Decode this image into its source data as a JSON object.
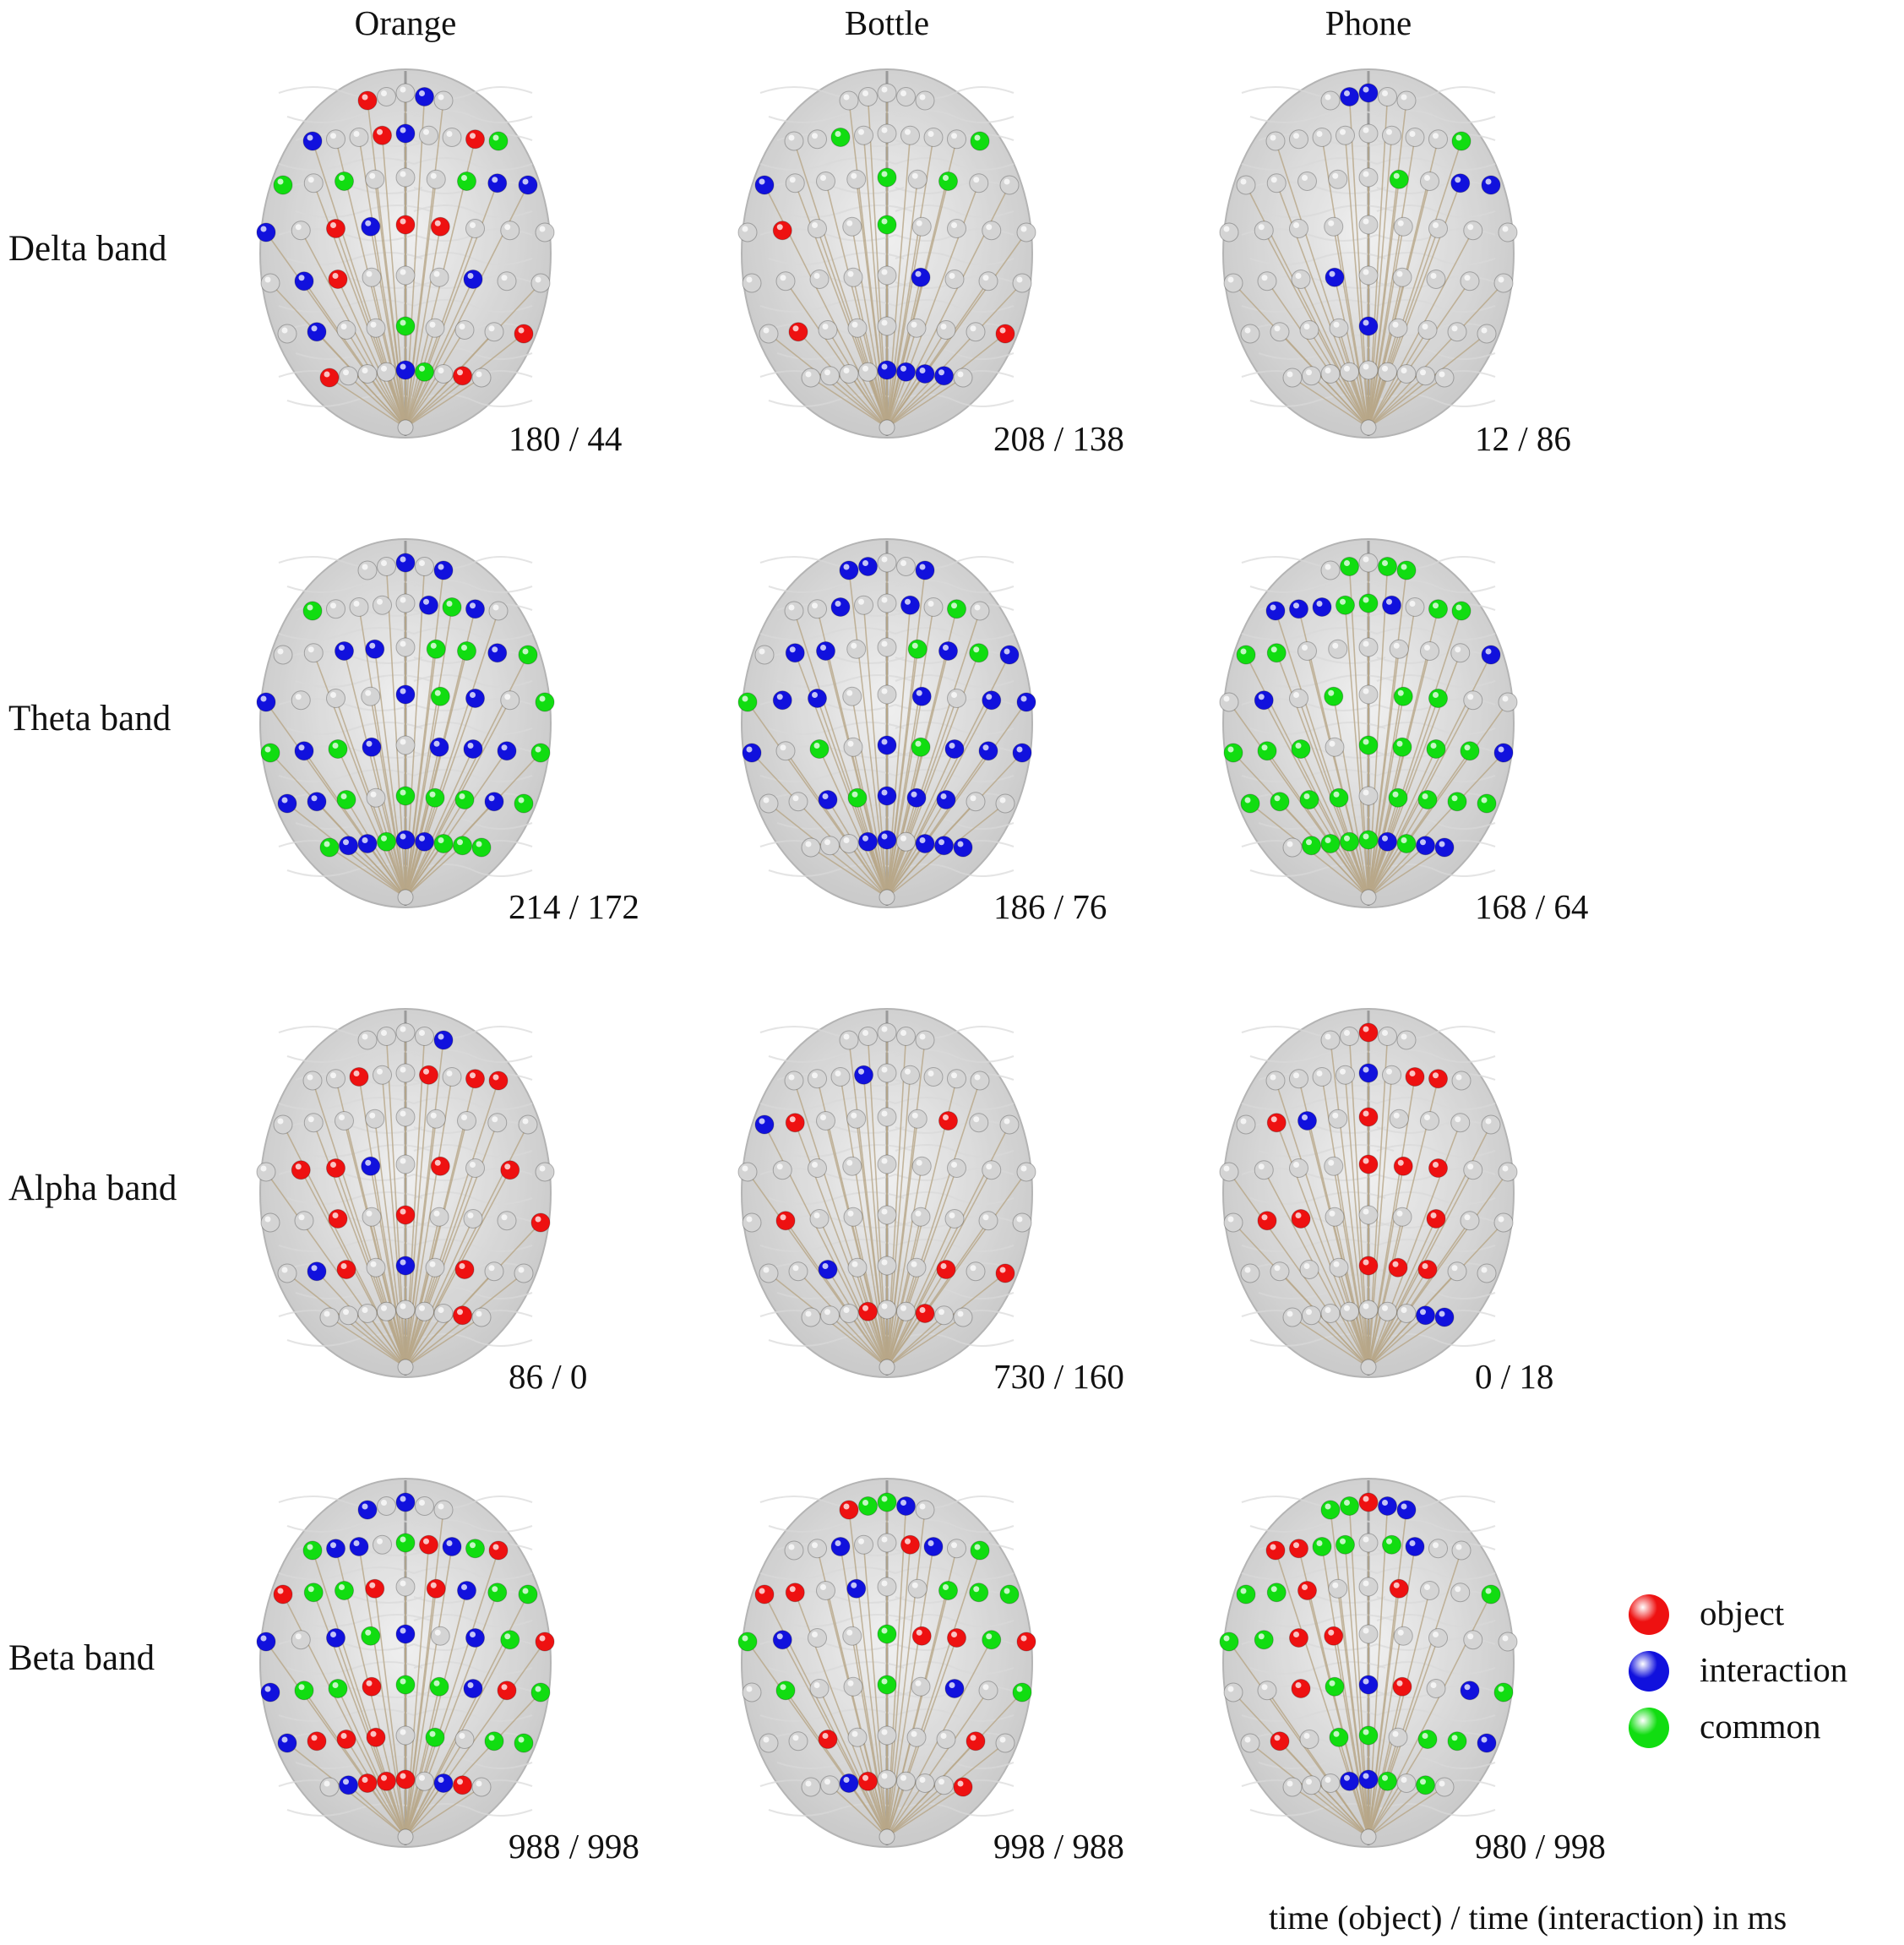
{
  "columns": [
    "Orange",
    "Bottle",
    "Phone"
  ],
  "rows": [
    "Delta band",
    "Theta band",
    "Alpha band",
    "Beta band"
  ],
  "times": [
    [
      "180 / 44",
      "208 / 138",
      "12 / 86"
    ],
    [
      "214 / 172",
      "186 / 76",
      "168 / 64"
    ],
    [
      "86 / 0",
      "730 / 160",
      "0 / 18"
    ],
    [
      "988 / 998",
      "998 / 988",
      "980 / 998"
    ]
  ],
  "legend": [
    {
      "label": "object",
      "color": "#ee1111"
    },
    {
      "label": "interaction",
      "color": "#1111dd"
    },
    {
      "label": "common",
      "color": "#11dd11"
    }
  ],
  "caption": "time (object) / time (interaction) in ms",
  "colors": {
    "object": "#ee1111",
    "interaction": "#1111dd",
    "common": "#11dd11",
    "inactive": "#d4d4d4",
    "connection": "#b8a788",
    "brain": "#c9c9c9"
  }
}
